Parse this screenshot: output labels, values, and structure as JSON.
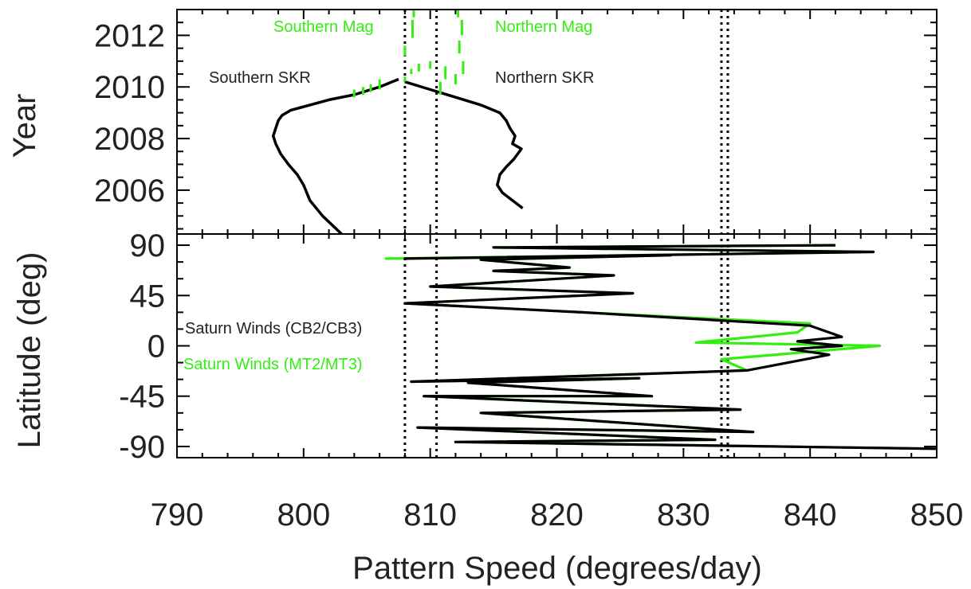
{
  "chart_data": {
    "type": "line",
    "x_axis": {
      "label": "Pattern Speed (degrees/day)",
      "ticks": [
        "790",
        "800",
        "810",
        "820",
        "830",
        "840",
        "850"
      ],
      "xlim": [
        790,
        850
      ]
    },
    "top_panel": {
      "ylabel": "Year",
      "yticks": [
        "2006",
        "2008",
        "2010",
        "2012"
      ],
      "ylim": [
        2004.3,
        2013
      ],
      "annotations": {
        "southern_mag": "Southern Mag",
        "northern_mag": "Northern Mag",
        "southern_skr": "Southern SKR",
        "northern_skr": "Northern SKR"
      },
      "series": [
        {
          "name": "Southern SKR",
          "color": "#000000",
          "x": [
            803.0,
            801.5,
            800.5,
            800.0,
            799.5,
            798.8,
            798.2,
            797.8,
            797.6,
            797.8,
            798.0,
            798.3,
            799.0,
            800.5,
            802.0,
            804.0,
            806.0,
            807.5
          ],
          "y": [
            2004.3,
            2005.0,
            2005.6,
            2006.2,
            2006.6,
            2007.0,
            2007.4,
            2007.8,
            2008.1,
            2008.4,
            2008.7,
            2008.9,
            2009.1,
            2009.3,
            2009.5,
            2009.7,
            2010.0,
            2010.3
          ]
        },
        {
          "name": "Northern SKR",
          "color": "#000000",
          "x": [
            808.0,
            810.0,
            812.0,
            814.0,
            815.5,
            816.0,
            816.3,
            816.7,
            816.5,
            817.2,
            816.6,
            816.0,
            815.5,
            815.3,
            815.7,
            816.5,
            817.3
          ],
          "y": [
            2010.2,
            2009.9,
            2009.6,
            2009.3,
            2009.0,
            2008.7,
            2008.4,
            2008.1,
            2007.8,
            2007.6,
            2007.2,
            2006.9,
            2006.6,
            2006.2,
            2005.9,
            2005.6,
            2005.3
          ]
        }
      ],
      "mag_segments": [
        {
          "x": 804.0,
          "y0": 2009.6,
          "y1": 2009.9
        },
        {
          "x": 804.7,
          "y0": 2009.7,
          "y1": 2010.0
        },
        {
          "x": 805.3,
          "y0": 2009.8,
          "y1": 2010.1
        },
        {
          "x": 806.0,
          "y0": 2009.9,
          "y1": 2010.3
        },
        {
          "x": 808.0,
          "y0": 2010.2,
          "y1": 2010.4
        },
        {
          "x": 808.5,
          "y0": 2010.5,
          "y1": 2010.7
        },
        {
          "x": 809.1,
          "y0": 2010.6,
          "y1": 2010.9
        },
        {
          "x": 808.0,
          "y0": 2011.2,
          "y1": 2011.6
        },
        {
          "x": 808.6,
          "y0": 2011.9,
          "y1": 2012.6
        },
        {
          "x": 808.7,
          "y0": 2012.7,
          "y1": 2013.0
        },
        {
          "x": 810.8,
          "y0": 2009.7,
          "y1": 2010.2
        },
        {
          "x": 811.2,
          "y0": 2010.3,
          "y1": 2010.8
        },
        {
          "x": 812.0,
          "y0": 2010.1,
          "y1": 2010.5
        },
        {
          "x": 812.6,
          "y0": 2010.5,
          "y1": 2011.0
        },
        {
          "x": 812.3,
          "y0": 2011.3,
          "y1": 2011.8
        },
        {
          "x": 812.5,
          "y0": 2012.0,
          "y1": 2012.6
        },
        {
          "x": 812.2,
          "y0": 2012.7,
          "y1": 2013.0
        },
        {
          "x": 810.0,
          "y0": 2010.7,
          "y1": 2011.0
        }
      ]
    },
    "bottom_panel": {
      "ylabel": "Latitude (deg)",
      "yticks": [
        "-90",
        "-45",
        "0",
        "45",
        "90"
      ],
      "ylim": [
        -100,
        100
      ],
      "annotations": {
        "cb": "Saturn Winds (CB2/CB3)",
        "mt": "Saturn Winds (MT2/MT3)"
      },
      "series": [
        {
          "name": "Saturn Winds (MT2/MT3)",
          "color": "#33ee11",
          "x": [
            850.0,
            812.0,
            832.5,
            809.0,
            835.5,
            814.0,
            834.5,
            809.5,
            827.5,
            813.0,
            826.5,
            808.5,
            835.0,
            833.0,
            845.5,
            831.0,
            839.0,
            840.0,
            822.0,
            808.0,
            826.0,
            810.0,
            824.5,
            815.0,
            821.0,
            814.0,
            829.0,
            806.5,
            845.0,
            815.0,
            842.0
          ],
          "y": [
            -92,
            -86,
            -84,
            -73,
            -77,
            -60,
            -57,
            -45,
            -45,
            -33,
            -29,
            -32,
            -22,
            -12,
            0,
            3,
            12,
            20,
            30,
            38,
            47,
            53,
            63,
            67,
            70,
            77,
            81,
            78,
            84,
            88,
            90
          ]
        },
        {
          "name": "Saturn Winds (CB2/CB3)",
          "color": "#000000",
          "x": [
            850.0,
            812.0,
            832.5,
            809.0,
            835.5,
            814.0,
            834.5,
            809.5,
            827.5,
            813.0,
            826.5,
            808.5,
            835.0,
            841.5,
            838.5,
            842.5,
            839.0,
            842.5,
            840.0,
            822.0,
            808.0,
            826.0,
            810.0,
            824.5,
            815.0,
            821.0,
            814.0,
            829.0,
            808.0,
            845.0,
            815.0,
            842.0
          ],
          "y": [
            -92,
            -86,
            -84,
            -73,
            -77,
            -60,
            -57,
            -45,
            -45,
            -33,
            -29,
            -32,
            -22,
            -8,
            -3,
            0,
            4,
            8,
            18,
            30,
            38,
            47,
            53,
            63,
            67,
            70,
            77,
            81,
            78,
            84,
            88,
            90
          ]
        }
      ]
    },
    "vertical_dotted_lines": [
      808.0,
      810.5,
      833.0,
      833.5
    ]
  }
}
